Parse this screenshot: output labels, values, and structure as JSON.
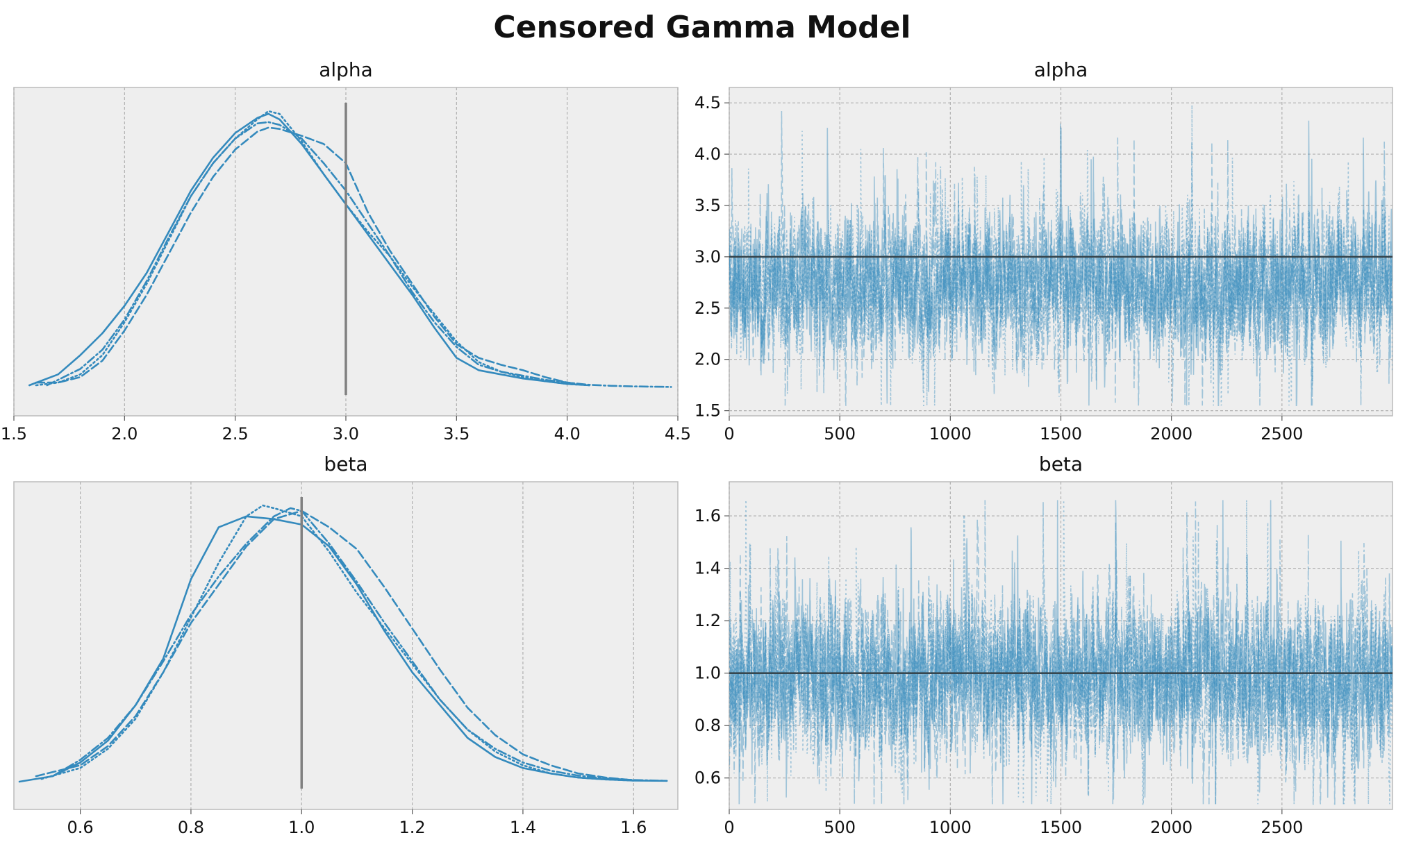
{
  "title": "Censored Gamma Model",
  "colors": {
    "line": "#348abd",
    "true_value": "#808080",
    "panel_bg": "#eeeeee",
    "grid": "#b0b0b0",
    "hline": "#37474f"
  },
  "chart_data": [
    {
      "type": "line",
      "title": "alpha",
      "xlim": [
        1.5,
        4.5
      ],
      "xticks": [
        "1.5",
        "2.0",
        "2.5",
        "3.0",
        "3.5",
        "4.0",
        "4.5"
      ],
      "ref_value": 3.0,
      "yaxis_labels": false,
      "series": [
        {
          "linestyle": "solid",
          "x": [
            1.57,
            1.7,
            1.8,
            1.9,
            2.0,
            2.1,
            2.2,
            2.3,
            2.4,
            2.5,
            2.6,
            2.65,
            2.7,
            2.8,
            2.9,
            3.0,
            3.1,
            3.2,
            3.3,
            3.4,
            3.5,
            3.6,
            3.7,
            3.8,
            3.9,
            4.0,
            4.1
          ],
          "density": [
            0.01,
            0.05,
            0.12,
            0.2,
            0.3,
            0.42,
            0.57,
            0.72,
            0.84,
            0.93,
            0.985,
            1.0,
            0.98,
            0.89,
            0.78,
            0.67,
            0.56,
            0.45,
            0.34,
            0.22,
            0.11,
            0.065,
            0.05,
            0.035,
            0.025,
            0.015,
            0.01
          ]
        },
        {
          "linestyle": "dashed",
          "x": [
            1.6,
            1.7,
            1.8,
            1.9,
            2.0,
            2.1,
            2.2,
            2.3,
            2.4,
            2.5,
            2.6,
            2.65,
            2.7,
            2.8,
            2.9,
            3.0,
            3.1,
            3.2,
            3.3,
            3.4,
            3.5,
            3.6,
            3.7,
            3.8,
            3.9,
            4.0,
            4.1
          ],
          "density": [
            0.02,
            0.02,
            0.04,
            0.1,
            0.21,
            0.34,
            0.49,
            0.64,
            0.77,
            0.87,
            0.935,
            0.95,
            0.945,
            0.92,
            0.89,
            0.82,
            0.64,
            0.5,
            0.38,
            0.26,
            0.16,
            0.11,
            0.085,
            0.065,
            0.04,
            0.02,
            0.01
          ]
        },
        {
          "linestyle": "dotted",
          "x": [
            1.6,
            1.7,
            1.8,
            1.9,
            2.0,
            2.1,
            2.2,
            2.3,
            2.4,
            2.5,
            2.6,
            2.65,
            2.7,
            2.8,
            2.9,
            3.0,
            3.1,
            3.2,
            3.3,
            3.4,
            3.5,
            3.6,
            3.7,
            3.8,
            3.9,
            4.0,
            4.1
          ],
          "density": [
            0.01,
            0.02,
            0.05,
            0.12,
            0.24,
            0.38,
            0.54,
            0.7,
            0.82,
            0.91,
            0.98,
            1.01,
            1.0,
            0.9,
            0.78,
            0.67,
            0.57,
            0.48,
            0.37,
            0.27,
            0.17,
            0.095,
            0.06,
            0.04,
            0.025,
            0.015,
            0.01
          ]
        },
        {
          "linestyle": "dashdot",
          "x": [
            1.65,
            1.8,
            1.9,
            2.0,
            2.1,
            2.2,
            2.3,
            2.4,
            2.5,
            2.6,
            2.65,
            2.7,
            2.8,
            2.9,
            3.0,
            3.1,
            3.2,
            3.3,
            3.4,
            3.5,
            3.6,
            3.7,
            3.8,
            3.9,
            4.0,
            4.1,
            4.2,
            4.3,
            4.47
          ],
          "density": [
            0.01,
            0.07,
            0.14,
            0.25,
            0.39,
            0.55,
            0.7,
            0.82,
            0.91,
            0.965,
            0.97,
            0.96,
            0.91,
            0.82,
            0.72,
            0.6,
            0.48,
            0.35,
            0.24,
            0.15,
            0.085,
            0.06,
            0.045,
            0.03,
            0.02,
            0.012,
            0.008,
            0.006,
            0.004
          ]
        }
      ]
    },
    {
      "type": "line",
      "title": "alpha",
      "xlim": [
        0,
        3000
      ],
      "ylim": [
        1.45,
        4.65
      ],
      "xticks": [
        "0",
        "500",
        "1000",
        "1500",
        "2000",
        "2500"
      ],
      "yticks": [
        "1.5",
        "2.0",
        "2.5",
        "3.0",
        "3.5",
        "4.0",
        "4.5"
      ],
      "ref_value": 3.0,
      "draws": 3000,
      "chains": 4,
      "center": 2.72,
      "spread": 0.32,
      "min": 1.55,
      "max": 4.5
    },
    {
      "type": "line",
      "title": "beta",
      "xlim": [
        0.48,
        1.68
      ],
      "xticks": [
        "0.6",
        "0.8",
        "1.0",
        "1.2",
        "1.4",
        "1.6"
      ],
      "ref_value": 1.0,
      "yaxis_labels": false,
      "series": [
        {
          "linestyle": "solid",
          "x": [
            0.49,
            0.55,
            0.6,
            0.65,
            0.7,
            0.75,
            0.8,
            0.85,
            0.9,
            0.95,
            1.0,
            1.05,
            1.1,
            1.15,
            1.2,
            1.25,
            1.3,
            1.35,
            1.4,
            1.45,
            1.5,
            1.55,
            1.6,
            1.66
          ],
          "density": [
            0.0,
            0.02,
            0.07,
            0.15,
            0.28,
            0.45,
            0.74,
            0.93,
            0.97,
            0.96,
            0.94,
            0.86,
            0.72,
            0.55,
            0.4,
            0.28,
            0.16,
            0.09,
            0.05,
            0.03,
            0.015,
            0.008,
            0.004,
            0.003
          ]
        },
        {
          "linestyle": "dashed",
          "x": [
            0.52,
            0.6,
            0.65,
            0.7,
            0.75,
            0.8,
            0.85,
            0.9,
            0.95,
            1.0,
            1.05,
            1.1,
            1.15,
            1.2,
            1.25,
            1.3,
            1.35,
            1.4,
            1.45,
            1.5,
            1.55,
            1.6
          ],
          "density": [
            0.02,
            0.06,
            0.13,
            0.24,
            0.4,
            0.58,
            0.72,
            0.86,
            0.96,
            0.99,
            0.93,
            0.85,
            0.71,
            0.56,
            0.41,
            0.27,
            0.17,
            0.1,
            0.06,
            0.03,
            0.015,
            0.005
          ]
        },
        {
          "linestyle": "dotted",
          "x": [
            0.53,
            0.6,
            0.65,
            0.7,
            0.75,
            0.8,
            0.85,
            0.9,
            0.93,
            0.95,
            1.0,
            1.05,
            1.1,
            1.15,
            1.2,
            1.25,
            1.3,
            1.35,
            1.4,
            1.45,
            1.5,
            1.55,
            1.6
          ],
          "density": [
            0.01,
            0.05,
            0.12,
            0.23,
            0.4,
            0.6,
            0.8,
            0.97,
            1.01,
            1.0,
            0.97,
            0.84,
            0.69,
            0.56,
            0.43,
            0.3,
            0.19,
            0.11,
            0.06,
            0.03,
            0.015,
            0.008,
            0.004
          ]
        },
        {
          "linestyle": "dashdot",
          "x": [
            0.55,
            0.6,
            0.65,
            0.7,
            0.75,
            0.8,
            0.85,
            0.9,
            0.95,
            0.98,
            1.0,
            1.05,
            1.1,
            1.15,
            1.2,
            1.25,
            1.3,
            1.35,
            1.4,
            1.45,
            1.5,
            1.55,
            1.6,
            1.66
          ],
          "density": [
            0.02,
            0.08,
            0.16,
            0.28,
            0.44,
            0.61,
            0.75,
            0.87,
            0.97,
            1.0,
            0.99,
            0.87,
            0.73,
            0.58,
            0.44,
            0.3,
            0.19,
            0.12,
            0.07,
            0.04,
            0.022,
            0.012,
            0.006,
            0.003
          ]
        }
      ]
    },
    {
      "type": "line",
      "title": "beta",
      "xlim": [
        0,
        3000
      ],
      "ylim": [
        0.48,
        1.73
      ],
      "xticks": [
        "0",
        "500",
        "1000",
        "1500",
        "2000",
        "2500"
      ],
      "yticks": [
        "0.6",
        "0.8",
        "1.0",
        "1.2",
        "1.4",
        "1.6"
      ],
      "ref_value": 1.0,
      "draws": 3000,
      "chains": 4,
      "center": 0.98,
      "spread": 0.14,
      "min": 0.5,
      "max": 1.66
    }
  ]
}
